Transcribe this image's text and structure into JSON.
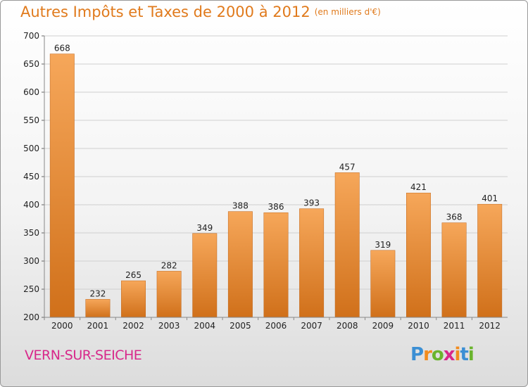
{
  "title": "Autres Impôts et Taxes de 2000 à 2012",
  "title_unit": "(en milliers d'€)",
  "commune": "VERN-SUR-SEICHE",
  "logo": {
    "text": "Proxiti",
    "letter_colors": [
      "#3b8fd4",
      "#f28c1e",
      "#6ab42d",
      "#d8278a",
      "#f28c1e",
      "#3b8fd4",
      "#6ab42d"
    ]
  },
  "colors": {
    "bar_top": "#f6a75a",
    "bar_bottom": "#d0701a",
    "accent": "#e07a1c"
  },
  "chart_data": {
    "type": "bar",
    "categories": [
      "2000",
      "2001",
      "2002",
      "2003",
      "2004",
      "2005",
      "2006",
      "2007",
      "2008",
      "2009",
      "2010",
      "2011",
      "2012"
    ],
    "values": [
      668,
      232,
      265,
      282,
      349,
      388,
      386,
      393,
      457,
      319,
      421,
      368,
      401
    ],
    "ylim": [
      200,
      700
    ],
    "yticks": [
      200,
      250,
      300,
      350,
      400,
      450,
      500,
      550,
      600,
      650,
      700
    ],
    "grid": true,
    "title": "Autres Impôts et Taxes de 2000 à 2012",
    "xlabel": "",
    "ylabel": ""
  }
}
